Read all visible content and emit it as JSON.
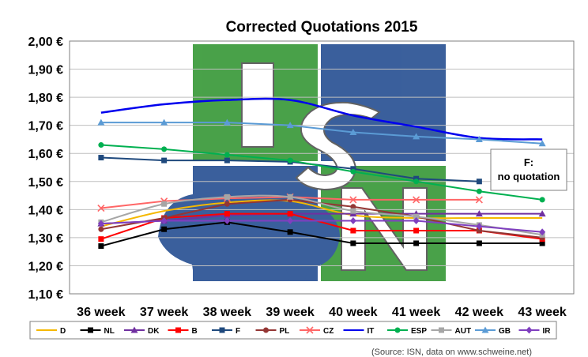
{
  "chart_data": {
    "type": "line",
    "title": "Corrected Quotations 2015",
    "categories": [
      "36 week",
      "37 week",
      "38 week",
      "39 week",
      "40 week",
      "41 week",
      "42 week",
      "43 week"
    ],
    "ylim": [
      1.1,
      2.0
    ],
    "yticks": [
      1.1,
      1.2,
      1.3,
      1.4,
      1.5,
      1.6,
      1.7,
      1.8,
      1.9,
      2.0
    ],
    "ytick_labels": [
      "1,10 €",
      "1,20 €",
      "1,30 €",
      "1,40 €",
      "1,50 €",
      "1,60 €",
      "1,70 €",
      "1,80 €",
      "1,90 €",
      "2,00 €"
    ],
    "grid": "horizontal",
    "legend_position": "bottom",
    "annotation": "F: no quotation",
    "watermark": "ISN",
    "series": [
      {
        "name": "D",
        "color": "#f5b800",
        "marker": "none",
        "smooth": true,
        "values": [
          1.34,
          1.395,
          1.425,
          1.43,
          1.38,
          1.37,
          1.37,
          1.37
        ]
      },
      {
        "name": "NL",
        "color": "#000000",
        "marker": "square",
        "smooth": false,
        "values": [
          1.27,
          1.33,
          1.355,
          1.32,
          1.28,
          1.28,
          1.28,
          1.28
        ]
      },
      {
        "name": "DK",
        "color": "#7030a0",
        "marker": "triangle",
        "smooth": false,
        "values": [
          1.35,
          1.36,
          1.38,
          1.385,
          1.385,
          1.385,
          1.385,
          1.385
        ]
      },
      {
        "name": "B",
        "color": "#ff0000",
        "marker": "square",
        "smooth": false,
        "values": [
          1.295,
          1.37,
          1.385,
          1.385,
          1.325,
          1.325,
          1.325,
          1.295
        ]
      },
      {
        "name": "F",
        "color": "#1f497d",
        "marker": "square",
        "smooth": false,
        "values": [
          1.585,
          1.575,
          1.575,
          1.57,
          1.545,
          1.51,
          1.5,
          null
        ]
      },
      {
        "name": "PL",
        "color": "#943634",
        "marker": "circle",
        "smooth": false,
        "values": [
          1.33,
          1.37,
          1.42,
          1.435,
          1.41,
          1.375,
          1.325,
          1.3
        ]
      },
      {
        "name": "CZ",
        "color": "#ff6666",
        "marker": "cross",
        "smooth": false,
        "values": [
          1.405,
          1.43,
          1.44,
          1.445,
          1.435,
          1.435,
          1.435,
          null
        ]
      },
      {
        "name": "IT",
        "color": "#0000ee",
        "marker": "none",
        "smooth": true,
        "values": [
          1.745,
          1.775,
          1.79,
          1.79,
          1.735,
          1.695,
          1.655,
          1.65
        ]
      },
      {
        "name": "ESP",
        "color": "#00b050",
        "marker": "circle",
        "smooth": false,
        "values": [
          1.63,
          1.615,
          1.595,
          1.575,
          1.535,
          1.5,
          1.465,
          1.435
        ]
      },
      {
        "name": "AUT",
        "color": "#a6a6a6",
        "marker": "square",
        "smooth": true,
        "values": [
          1.355,
          1.42,
          1.445,
          1.445,
          1.395,
          1.375,
          1.345,
          1.31
        ]
      },
      {
        "name": "GB",
        "color": "#5b9bd5",
        "marker": "triangle",
        "smooth": false,
        "values": [
          1.71,
          1.71,
          1.71,
          1.7,
          1.675,
          1.66,
          1.65,
          1.635
        ]
      },
      {
        "name": "IR",
        "color": "#7f3fbf",
        "marker": "diamond",
        "smooth": false,
        "values": [
          1.35,
          1.36,
          1.36,
          1.36,
          1.36,
          1.36,
          1.34,
          1.32
        ]
      }
    ]
  },
  "source_note": "(Source: ISN, data on www.schweine.net)"
}
